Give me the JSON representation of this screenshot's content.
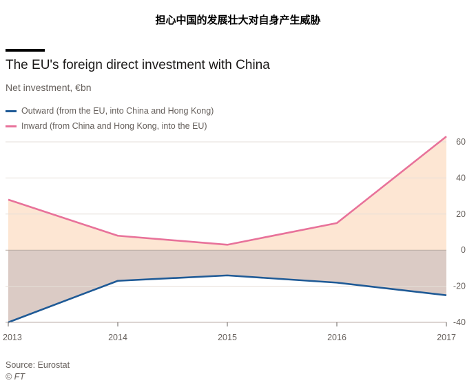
{
  "banner": "担心中国的发展壮大对自身产生威胁",
  "source": "Source: Eurostat",
  "credit": "© FT",
  "colors": {
    "outward": "#1f5a96",
    "inward": "#e8729a",
    "positive_fill": "#fde6d3",
    "negative_fill": "#dbcbc5",
    "grid": "#e6dfd8",
    "zero": "#b9aba4"
  },
  "chart_data": {
    "type": "area",
    "title": "The EU's foreign direct investment with China",
    "subtitle": "Net investment, €bn",
    "x": [
      "2013",
      "2014",
      "2015",
      "2016",
      "2017"
    ],
    "series": [
      {
        "name": "Outward (from the EU, into China and Hong Kong)",
        "values": [
          -40,
          -17,
          -14,
          -18,
          -25
        ]
      },
      {
        "name": "Inward (from China and Hong Kong, into the EU)",
        "values": [
          28,
          8,
          3,
          15,
          63
        ]
      }
    ],
    "ylim": [
      -40,
      60
    ],
    "yticks": [
      "60",
      "40",
      "20",
      "0",
      "-20",
      "-40"
    ],
    "ytick_values": [
      60,
      40,
      20,
      0,
      -20,
      -40
    ],
    "grid": true,
    "legend": "top-left"
  }
}
